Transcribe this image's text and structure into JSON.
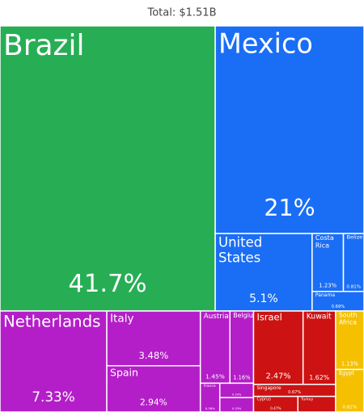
{
  "chart_data": {
    "type": "treemap",
    "title": "Total: $1.51B",
    "categories": [
      "Brazil",
      "Mexico",
      "United States",
      "Costa Rica",
      "Belize",
      "Panama",
      "Netherlands",
      "Italy",
      "Spain",
      "Austria",
      "Belgium",
      "France",
      null,
      null,
      "Israel",
      "Kuwait",
      "Singapore",
      "Cyprus",
      "Turkey",
      "South Africa",
      "Egypt"
    ],
    "values": [
      41.7,
      21,
      5.1,
      1.23,
      0.81,
      0.69,
      7.33,
      3.48,
      2.94,
      1.45,
      1.16,
      0.38,
      0.33,
      0.33,
      2.47,
      1.62,
      0.67,
      0.47,
      0.4,
      1.13,
      0.82
    ],
    "value_labels": [
      "41.7%",
      "21%",
      "5.1%",
      "1.23%",
      "0.81%",
      "0.69%",
      "7.33%",
      "3.48%",
      "2.94%",
      "1.45%",
      "1.16%",
      "0.38%",
      "0.33%",
      "0.33%",
      "2.47%",
      "1.62%",
      "0.67%",
      "0.47%",
      null,
      "1.13%",
      "0.82%"
    ],
    "colors": [
      "#27ae55",
      "#1a6ef5",
      "#1a6ef5",
      "#1a6ef5",
      "#1a6ef5",
      "#1a6ef5",
      "#b41ec8",
      "#b41ec8",
      "#b41ec8",
      "#b41ec8",
      "#b41ec8",
      "#b41ec8",
      "#b41ec8",
      "#b41ec8",
      "#cc1212",
      "#cc1212",
      "#cc1212",
      "#cc1212",
      "#cc1212",
      "#f5c000",
      "#f5c000"
    ]
  }
}
